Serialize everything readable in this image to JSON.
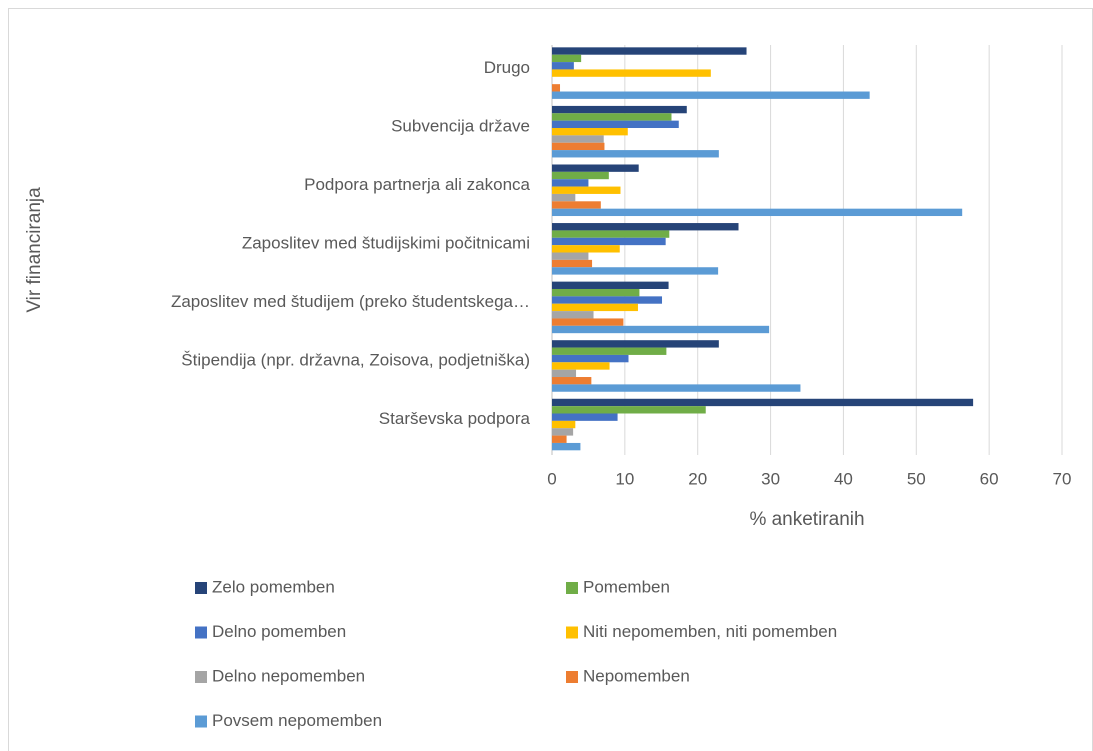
{
  "chart_data": {
    "type": "bar",
    "orientation": "horizontal",
    "y_label": "Vir financiranja",
    "x_label": "% anketiranih",
    "categories": [
      "Starševska podpora",
      "Štipendija (npr. državna, Zoisova, podjetniška)",
      "Zaposlitev med študijem (preko študentskega…",
      "Zaposlitev med študijskimi počitnicami",
      "Podpora partnerja ali zakonca",
      "Subvencija države",
      "Drugo"
    ],
    "series": [
      {
        "name": "Zelo pomemben",
        "color": "#264478",
        "values": [
          57.8,
          22.9,
          16.0,
          25.6,
          11.9,
          18.5,
          26.7
        ]
      },
      {
        "name": "Pomemben",
        "color": "#70ad47",
        "values": [
          21.1,
          15.7,
          12.0,
          16.1,
          7.8,
          16.4,
          4.0
        ]
      },
      {
        "name": "Delno pomemben",
        "color": "#4472c4",
        "values": [
          9.0,
          10.5,
          15.1,
          15.6,
          5.0,
          17.4,
          3.0
        ]
      },
      {
        "name": "Niti nepomemben, niti pomemben",
        "color": "#ffc000",
        "values": [
          3.2,
          7.9,
          11.8,
          9.3,
          9.4,
          10.4,
          21.8
        ]
      },
      {
        "name": "Delno nepomemben",
        "color": "#a5a5a5",
        "values": [
          2.9,
          3.3,
          5.7,
          5.0,
          3.2,
          7.1,
          0
        ]
      },
      {
        "name": "Nepomemben",
        "color": "#ed7d31",
        "values": [
          2.0,
          5.4,
          9.8,
          5.5,
          6.7,
          7.2,
          1.1
        ]
      },
      {
        "name": "Povsem nepomemben",
        "color": "#5b9bd5",
        "values": [
          3.9,
          34.1,
          29.8,
          22.8,
          56.3,
          22.9,
          43.6
        ]
      }
    ],
    "xlim": [
      0,
      70
    ],
    "xticks": [
      0,
      10,
      20,
      30,
      40,
      50,
      60,
      70
    ],
    "grid": true,
    "legend": "bottom"
  }
}
